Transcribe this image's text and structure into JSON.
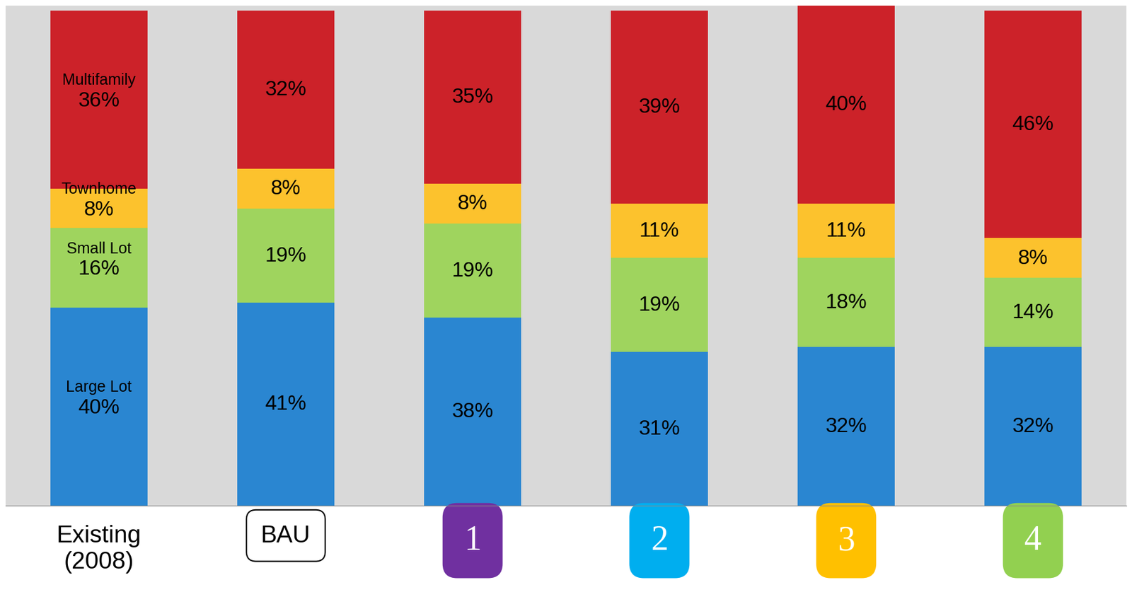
{
  "chart_data": {
    "type": "bar",
    "stacked": true,
    "data_labels": true,
    "tick_labels": "x",
    "categories": [
      "Existing\n(2008)",
      "BAU",
      "1",
      "2",
      "3",
      "4"
    ],
    "series": [
      {
        "name": "Large Lot",
        "color": "#2a86d1",
        "values": [
          40,
          41,
          38,
          31,
          32,
          32
        ],
        "value_labels": [
          "40%",
          "41%",
          "38%",
          "31%",
          "32%",
          "32%"
        ]
      },
      {
        "name": "Small Lot",
        "color": "#9fd45e",
        "values": [
          16,
          19,
          19,
          19,
          18,
          14
        ],
        "value_labels": [
          "16%",
          "19%",
          "19%",
          "19%",
          "18%",
          "14%"
        ]
      },
      {
        "name": "Townhome",
        "color": "#fcc22d",
        "values": [
          8,
          8,
          8,
          11,
          11,
          8
        ],
        "value_labels": [
          "8%",
          "8%",
          "8%",
          "11%",
          "11%",
          "8%"
        ]
      },
      {
        "name": "Multifamily",
        "color": "#cc2229",
        "values": [
          36,
          32,
          35,
          39,
          40,
          46
        ],
        "value_labels": [
          "36%",
          "32%",
          "35%",
          "39%",
          "40%",
          "46%"
        ]
      }
    ]
  }
}
